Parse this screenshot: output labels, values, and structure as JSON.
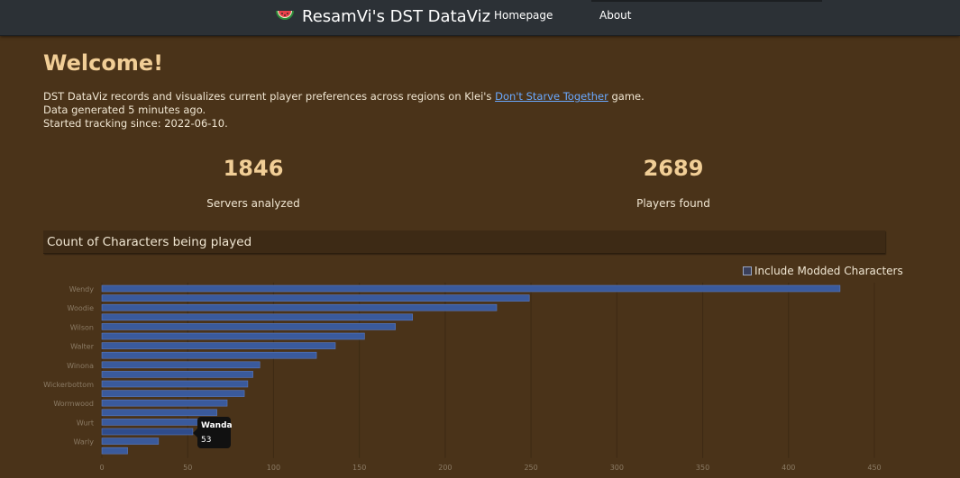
{
  "navbar": {
    "brand": "ResamVi's DST DataViz",
    "links": [
      "Homepage",
      "About"
    ]
  },
  "header": {
    "title": "Welcome!",
    "intro_prefix": "DST DataViz records and visualizes current player preferences across regions on Klei's ",
    "intro_link": "Don't Starve Together",
    "intro_suffix": " game.",
    "generated": "Data generated 5 minutes ago.",
    "tracking": "Started tracking since: 2022-06-10."
  },
  "stats": [
    {
      "value": "1846",
      "label": "Servers analyzed"
    },
    {
      "value": "2689",
      "label": "Players found"
    }
  ],
  "panel": {
    "title": "Count of Characters being played",
    "checkbox_label": "Include Modded Characters"
  },
  "tooltip": {
    "name": "Wanda",
    "value": "53"
  },
  "colors": {
    "background": "#4a3319",
    "bar": "#3a5a9c",
    "bar_highlight": "#2f4c8c",
    "accent": "#f1ce96"
  },
  "chart_data": {
    "type": "bar",
    "orientation": "horizontal",
    "categories": [
      "Wendy",
      "",
      "Woodie",
      "",
      "Wilson",
      "",
      "Walter",
      "",
      "Winona",
      "",
      "Wickerbottom",
      "",
      "Wormwood",
      "",
      "Wurt",
      "",
      "Warly",
      ""
    ],
    "hidden_category": "Wanda",
    "values": [
      430,
      249,
      230,
      181,
      171,
      153,
      136,
      125,
      92,
      88,
      85,
      83,
      73,
      67,
      59,
      53,
      33,
      15
    ],
    "highlight_index": 15,
    "xlim": [
      0,
      450
    ],
    "xticks": [
      0,
      50,
      100,
      150,
      200,
      250,
      300,
      350,
      400,
      450
    ],
    "grid": true,
    "legend": "none"
  }
}
